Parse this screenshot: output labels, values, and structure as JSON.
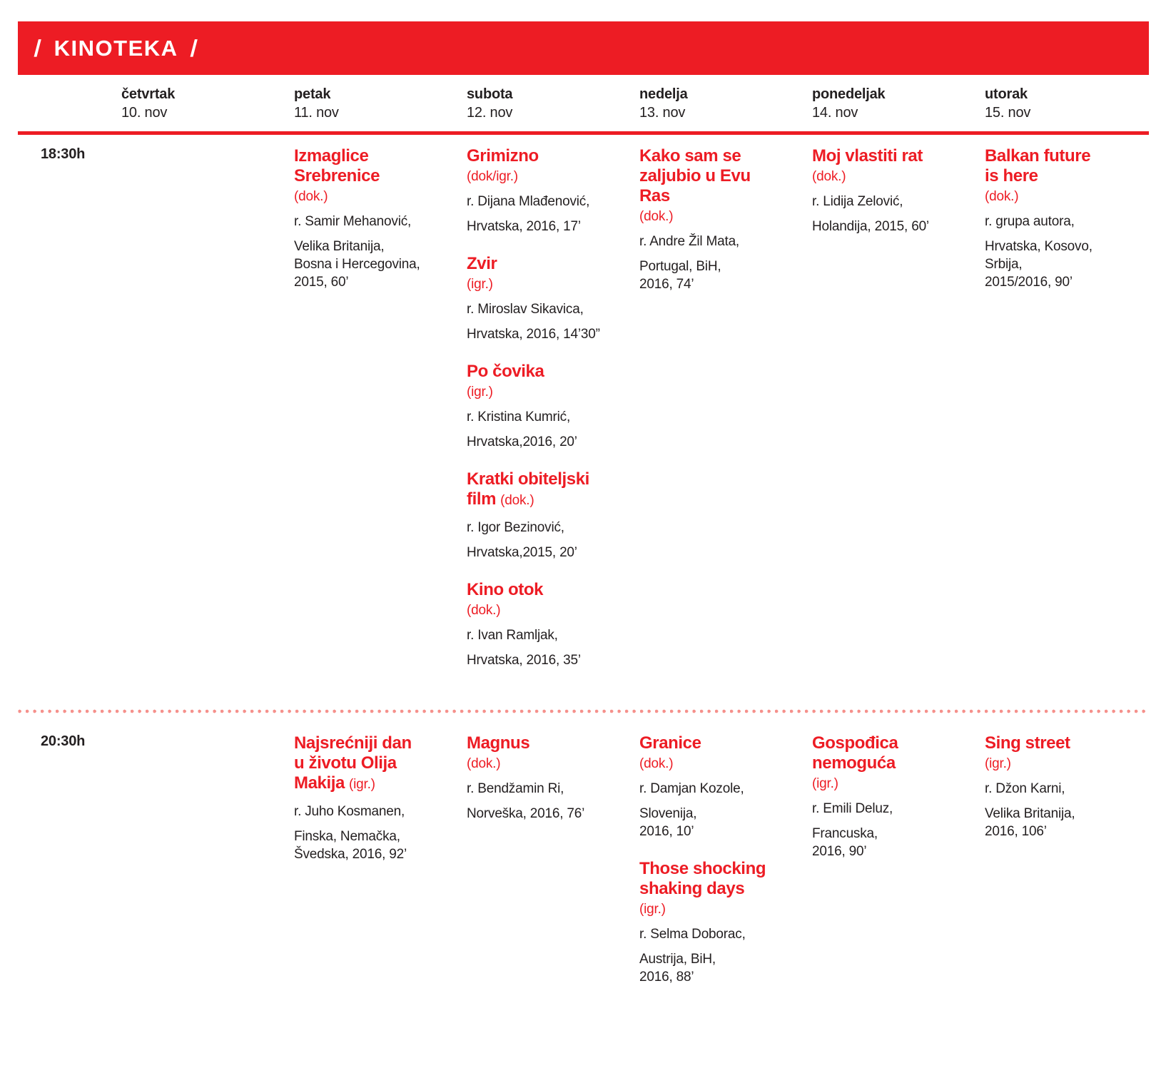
{
  "colors": {
    "accent_red": "#ED1C24",
    "text_ink": "#231F20",
    "dotted_separator": "#F5918C"
  },
  "header": {
    "decor_slash": "/",
    "title": "KINOTEKA"
  },
  "days": [
    {
      "name": "četvrtak",
      "date": "10. nov"
    },
    {
      "name": "petak",
      "date": "11. nov"
    },
    {
      "name": "subota",
      "date": "12. nov"
    },
    {
      "name": "nedelja",
      "date": "13. nov"
    },
    {
      "name": "ponedeljak",
      "date": "14. nov"
    },
    {
      "name": "utorak",
      "date": "15. nov"
    }
  ],
  "rows": [
    {
      "time": "18:30h",
      "cells": [
        [],
        [
          {
            "title": "Izmaglice\nSrebrenice",
            "type": "(dok.)",
            "type_inline": false,
            "director": "r. Samir Mehanović,",
            "info": "Velika Britanija,\nBosna i Hercegovina,\n2015, 60’"
          }
        ],
        [
          {
            "title": "Grimizno",
            "type": "(dok/igr.)",
            "type_inline": false,
            "director": "r. Dijana Mlađenović,",
            "info": "Hrvatska, 2016, 17’"
          },
          {
            "title": "Zvir",
            "type": "(igr.)",
            "type_inline": false,
            "director": "r. Miroslav Sikavica,",
            "info": "Hrvatska, 2016, 14’30”"
          },
          {
            "title": "Po čovika",
            "type": "(igr.)",
            "type_inline": false,
            "director": "r. Kristina Kumrić,",
            "info": "Hrvatska,2016, 20’"
          },
          {
            "title": "Kratki obiteljski\nfilm",
            "type": "(dok.)",
            "type_inline": true,
            "director": "r. Igor Bezinović,",
            "info": "Hrvatska,2015, 20’"
          },
          {
            "title": "Kino otok",
            "type": "(dok.)",
            "type_inline": false,
            "director": "r. Ivan Ramljak,",
            "info": "Hrvatska, 2016, 35’"
          }
        ],
        [
          {
            "title": "Kako sam se\nzaljubio u Evu\nRas",
            "type": "(dok.)",
            "type_inline": false,
            "director": "r. Andre Žil Mata,",
            "info": "Portugal, BiH,\n2016, 74’"
          }
        ],
        [
          {
            "title": "Moj vlastiti rat",
            "type": "(dok.)",
            "type_inline": false,
            "director": "r. Lidija Zelović,",
            "info": "Holandija, 2015, 60’"
          }
        ],
        [
          {
            "title": "Balkan future\nis here",
            "type": "(dok.)",
            "type_inline": false,
            "director": "r. grupa autora,",
            "info": "Hrvatska, Kosovo,\nSrbija,\n2015/2016, 90’"
          }
        ]
      ]
    },
    {
      "time": "20:30h",
      "cells": [
        [],
        [
          {
            "title": "Najsrećniji dan\nu životu Olija\nMakija",
            "type": "(igr.)",
            "type_inline": true,
            "director": "r. Juho Kosmanen,",
            "info": "Finska, Nemačka,\nŠvedska, 2016, 92’"
          }
        ],
        [
          {
            "title": "Magnus",
            "type": "(dok.)",
            "type_inline": false,
            "director": "r. Bendžamin Ri,",
            "info": "Norveška, 2016, 76’"
          }
        ],
        [
          {
            "title": "Granice",
            "type": "(dok.)",
            "type_inline": false,
            "director": "r. Damjan Kozole,",
            "info": "Slovenija,\n2016, 10’"
          },
          {
            "title": "Those shocking\nshaking days",
            "type": "(igr.)",
            "type_inline": false,
            "director": "r. Selma Doborac,",
            "info": "Austrija, BiH,\n2016, 88’"
          }
        ],
        [
          {
            "title": "Gospođica\nnemoguća",
            "type": "(igr.)",
            "type_inline": false,
            "director": "r. Emili Deluz,",
            "info": "Francuska,\n2016, 90’"
          }
        ],
        [
          {
            "title": "Sing street",
            "type": "(igr.)",
            "type_inline": false,
            "director": "r. Džon Karni,",
            "info": "Velika Britanija,\n2016, 106’"
          }
        ]
      ]
    }
  ]
}
